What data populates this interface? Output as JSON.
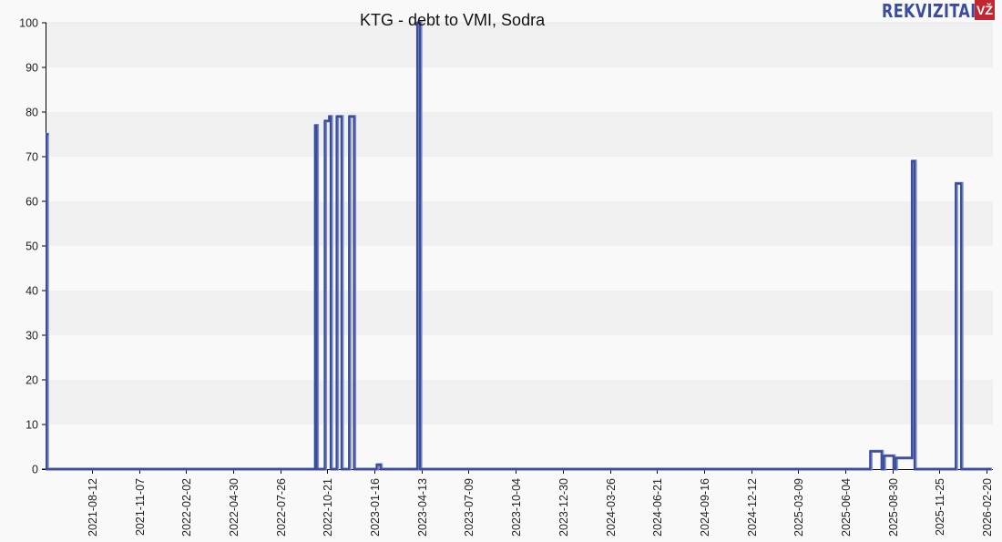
{
  "header": {
    "title": "KTG - debt to VMI, Sodra",
    "brand": {
      "name": "REKVIZITAI",
      "badge": "VŽ",
      "text_color": "#3a4d9c",
      "badge_color": "#c32630"
    }
  },
  "chart_data": {
    "type": "line",
    "step": true,
    "title": "KTG - debt to VMI, Sodra",
    "xlabel": "",
    "ylabel": "",
    "ylim": [
      0,
      100
    ],
    "yticks": [
      0,
      10,
      20,
      30,
      40,
      50,
      60,
      70,
      80,
      90,
      100
    ],
    "grid": "horizontal alternating bands",
    "legend": "none",
    "xticks": [
      "2021-08-12",
      "2021-11-07",
      "2022-02-02",
      "2022-04-30",
      "2022-07-26",
      "2022-10-21",
      "2023-01-16",
      "2023-04-13",
      "2023-07-09",
      "2023-10-04",
      "2023-12-30",
      "2024-03-26",
      "2024-06-21",
      "2024-09-16",
      "2024-12-12",
      "2025-03-09",
      "2025-06-04",
      "2025-08-30",
      "2025-11-25",
      "2026-02-20"
    ],
    "series": [
      {
        "name": "debt",
        "color": "#3a4d9c",
        "points": [
          {
            "x": "2021-05-18",
            "y": 75
          },
          {
            "x": "2021-05-20",
            "y": 0
          },
          {
            "x": "2022-09-28",
            "y": 77
          },
          {
            "x": "2022-10-01",
            "y": 0
          },
          {
            "x": "2022-10-16",
            "y": 78
          },
          {
            "x": "2022-10-24",
            "y": 79
          },
          {
            "x": "2022-10-27",
            "y": 0
          },
          {
            "x": "2022-11-07",
            "y": 79
          },
          {
            "x": "2022-11-16",
            "y": 0
          },
          {
            "x": "2022-11-30",
            "y": 79
          },
          {
            "x": "2022-12-09",
            "y": 0
          },
          {
            "x": "2023-01-20",
            "y": 1
          },
          {
            "x": "2023-01-27",
            "y": 0
          },
          {
            "x": "2023-04-05",
            "y": 100
          },
          {
            "x": "2023-04-10",
            "y": 0
          },
          {
            "x": "2025-07-20",
            "y": 4
          },
          {
            "x": "2025-08-10",
            "y": 0
          },
          {
            "x": "2025-08-14",
            "y": 3
          },
          {
            "x": "2025-09-01",
            "y": 0
          },
          {
            "x": "2025-09-05",
            "y": 2.5
          },
          {
            "x": "2025-10-05",
            "y": 69
          },
          {
            "x": "2025-10-10",
            "y": 0
          },
          {
            "x": "2025-12-25",
            "y": 64
          },
          {
            "x": "2026-01-04",
            "y": 0
          },
          {
            "x": "2026-02-28",
            "y": 0
          }
        ]
      }
    ]
  }
}
